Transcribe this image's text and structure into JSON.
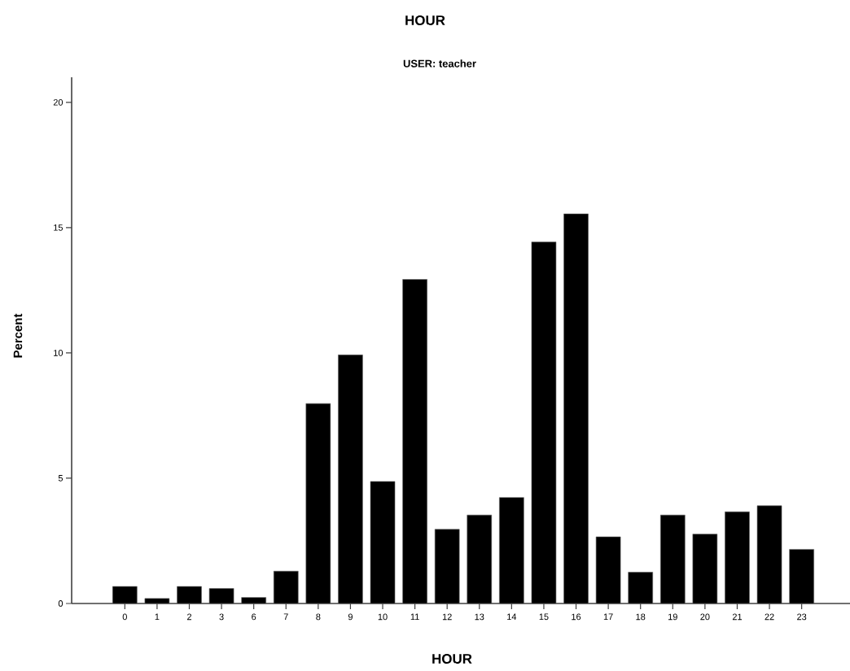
{
  "chart_data": {
    "type": "bar",
    "title": "HOUR",
    "subtitle": "USER: teacher",
    "xlabel": "HOUR",
    "ylabel": "Percent",
    "categories": [
      "0",
      "1",
      "2",
      "3",
      "6",
      "7",
      "8",
      "9",
      "10",
      "11",
      "12",
      "13",
      "14",
      "15",
      "16",
      "17",
      "18",
      "19",
      "20",
      "21",
      "22",
      "23"
    ],
    "values": [
      0.68,
      0.2,
      0.68,
      0.6,
      0.24,
      1.29,
      7.98,
      9.92,
      4.87,
      12.93,
      2.96,
      3.53,
      4.23,
      14.43,
      15.55,
      2.66,
      1.25,
      3.53,
      2.77,
      3.66,
      3.9,
      2.16
    ],
    "color": "#000000",
    "ylim": [
      0,
      21
    ],
    "yticks": [
      0,
      5,
      10,
      15,
      20
    ],
    "grid": false
  }
}
